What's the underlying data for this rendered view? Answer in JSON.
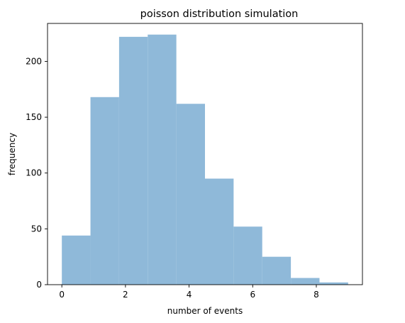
{
  "chart_data": {
    "type": "bar",
    "title": "poisson distribution simulation",
    "xlabel": "number of events",
    "ylabel": "frequency",
    "xlim": [
      -0.45,
      9.45
    ],
    "ylim": [
      0,
      234
    ],
    "x_ticks": [
      0,
      2,
      4,
      6,
      8
    ],
    "y_ticks": [
      0,
      50,
      100,
      150,
      200
    ],
    "bins": [
      {
        "x0": 0.0,
        "x1": 0.9,
        "value": 44
      },
      {
        "x0": 0.9,
        "x1": 1.8,
        "value": 168
      },
      {
        "x0": 1.8,
        "x1": 2.7,
        "value": 222
      },
      {
        "x0": 2.7,
        "x1": 3.6,
        "value": 224
      },
      {
        "x0": 3.6,
        "x1": 4.5,
        "value": 162
      },
      {
        "x0": 4.5,
        "x1": 5.4,
        "value": 95
      },
      {
        "x0": 5.4,
        "x1": 6.3,
        "value": 52
      },
      {
        "x0": 6.3,
        "x1": 7.2,
        "value": 25
      },
      {
        "x0": 7.2,
        "x1": 8.1,
        "value": 6
      },
      {
        "x0": 8.1,
        "x1": 9.0,
        "value": 2
      }
    ],
    "bar_color": "#8fb9d9",
    "grid": false,
    "legend": false
  }
}
